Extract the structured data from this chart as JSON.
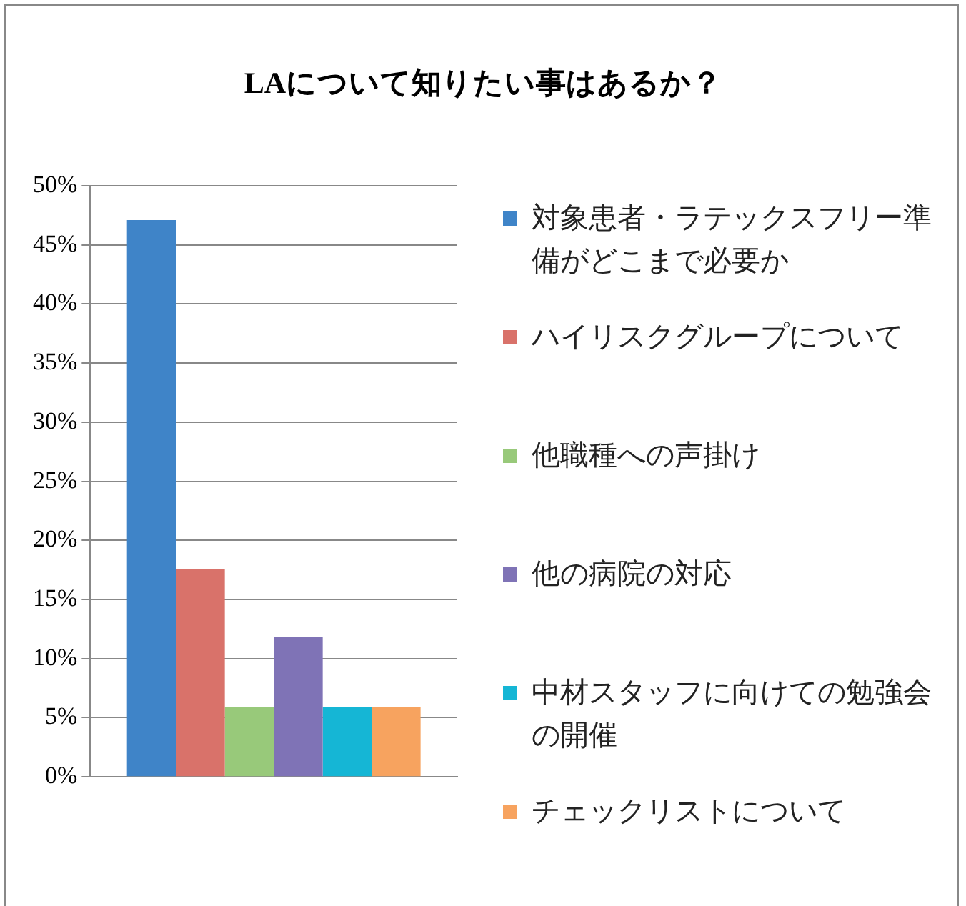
{
  "chart_data": {
    "type": "bar",
    "title": "LAについて知りたい事はあるか？",
    "categories": [
      null
    ],
    "series": [
      {
        "name": "対象患者・ラテックスフリー準備がどこまで必要か",
        "color": "#3f84c8",
        "values": [
          47.1
        ]
      },
      {
        "name": "ハイリスクグループについて",
        "color": "#d9726a",
        "values": [
          17.6
        ]
      },
      {
        "name": "他職種への声掛け",
        "color": "#98c97a",
        "values": [
          5.9
        ]
      },
      {
        "name": "他の病院の対応",
        "color": "#7f73b6",
        "values": [
          11.8
        ]
      },
      {
        "name": "中材スタッフに向けての勉強会の開催",
        "color": "#15b6d5",
        "values": [
          5.9
        ]
      },
      {
        "name": "チェックリストについて",
        "color": "#f7a35f",
        "values": [
          5.9
        ]
      }
    ],
    "ylim": [
      0,
      50
    ],
    "yticks": [
      {
        "value": 0,
        "label": "0%"
      },
      {
        "value": 5,
        "label": "5%"
      },
      {
        "value": 10,
        "label": "10%"
      },
      {
        "value": 15,
        "label": "15%"
      },
      {
        "value": 20,
        "label": "20%"
      },
      {
        "value": 25,
        "label": "25%"
      },
      {
        "value": 30,
        "label": "30%"
      },
      {
        "value": 35,
        "label": "35%"
      },
      {
        "value": 40,
        "label": "40%"
      },
      {
        "value": 45,
        "label": "45%"
      },
      {
        "value": 50,
        "label": "50%"
      }
    ],
    "grid": "y",
    "legend": "right"
  }
}
